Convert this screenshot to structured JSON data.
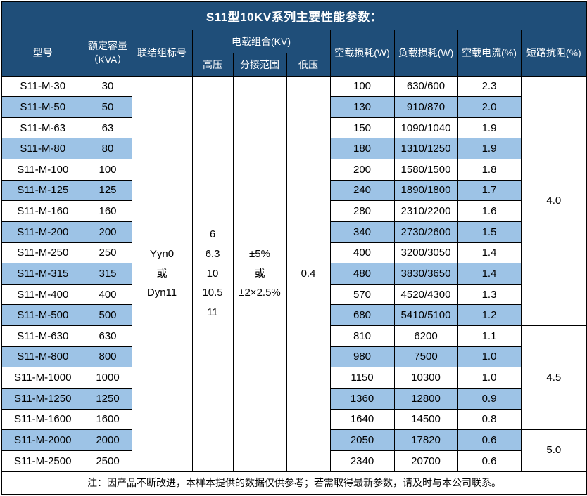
{
  "title": "S11型10KV系列主要性能参数：",
  "table": {
    "headers": {
      "model": "型号",
      "capacity": "额定容量\n（KVA）",
      "connection": "联结组标号",
      "load_combo": "电载组合(KV)",
      "high_voltage": "高压",
      "tap_range": "分接范围",
      "low_voltage": "低压",
      "no_load_loss": "空载损耗(W)",
      "load_loss": "负载损耗(W)",
      "no_load_current": "空载电流(%)",
      "impedance": "短路抗阻(%)"
    },
    "merged": {
      "connection": "Yyn0\n或\nDyn11",
      "high_voltage": "6\n6.3\n10\n10.5\n11",
      "tap_range": "±5%\n或\n±2×2.5%",
      "low_voltage": "0.4"
    },
    "rows": [
      {
        "model": "S11-M-30",
        "capacity": "30",
        "no_load_loss": "100",
        "load_loss": "630/600",
        "current": "2.3"
      },
      {
        "model": "S11-M-50",
        "capacity": "50",
        "no_load_loss": "130",
        "load_loss": "910/870",
        "current": "2.0"
      },
      {
        "model": "S11-M-63",
        "capacity": "63",
        "no_load_loss": "150",
        "load_loss": "1090/1040",
        "current": "1.9"
      },
      {
        "model": "S11-M-80",
        "capacity": "80",
        "no_load_loss": "180",
        "load_loss": "1310/1250",
        "current": "1.9"
      },
      {
        "model": "S11-M-100",
        "capacity": "100",
        "no_load_loss": "200",
        "load_loss": "1580/1500",
        "current": "1.8"
      },
      {
        "model": "S11-M-125",
        "capacity": "125",
        "no_load_loss": "240",
        "load_loss": "1890/1800",
        "current": "1.7"
      },
      {
        "model": "S11-M-160",
        "capacity": "160",
        "no_load_loss": "280",
        "load_loss": "2310/2200",
        "current": "1.6"
      },
      {
        "model": "S11-M-200",
        "capacity": "200",
        "no_load_loss": "340",
        "load_loss": "2730/2600",
        "current": "1.5"
      },
      {
        "model": "S11-M-250",
        "capacity": "250",
        "no_load_loss": "400",
        "load_loss": "3200/3050",
        "current": "1.4"
      },
      {
        "model": "S11-M-315",
        "capacity": "315",
        "no_load_loss": "480",
        "load_loss": "3830/3650",
        "current": "1.4"
      },
      {
        "model": "S11-M-400",
        "capacity": "400",
        "no_load_loss": "570",
        "load_loss": "4520/4300",
        "current": "1.3"
      },
      {
        "model": "S11-M-500",
        "capacity": "500",
        "no_load_loss": "680",
        "load_loss": "5410/5100",
        "current": "1.2"
      },
      {
        "model": "S11-M-630",
        "capacity": "630",
        "no_load_loss": "810",
        "load_loss": "6200",
        "current": "1.1"
      },
      {
        "model": "S11-M-800",
        "capacity": "800",
        "no_load_loss": "980",
        "load_loss": "7500",
        "current": "1.0"
      },
      {
        "model": "S11-M-1000",
        "capacity": "1000",
        "no_load_loss": "1150",
        "load_loss": "10300",
        "current": "1.0"
      },
      {
        "model": "S11-M-1250",
        "capacity": "1250",
        "no_load_loss": "1360",
        "load_loss": "12800",
        "current": "0.9"
      },
      {
        "model": "S11-M-1600",
        "capacity": "1600",
        "no_load_loss": "1640",
        "load_loss": "14500",
        "current": "0.8"
      },
      {
        "model": "S11-M-2000",
        "capacity": "2000",
        "no_load_loss": "2050",
        "load_loss": "17820",
        "current": "0.6"
      },
      {
        "model": "S11-M-2500",
        "capacity": "2500",
        "no_load_loss": "2340",
        "load_loss": "20700",
        "current": "0.6"
      }
    ],
    "impedance_groups": [
      {
        "value": "4.0",
        "rows": 12
      },
      {
        "value": "4.5",
        "rows": 5
      },
      {
        "value": "5.0",
        "rows": 2
      }
    ]
  },
  "footer": {
    "note": "注：因产品不断改进，本样本提供的数据仅供参考；若需取得最新参数，请及时与本公司联系。"
  },
  "colors": {
    "header_bg": "#1F4E79",
    "header_text": "#FFFFFF",
    "alt_row_bg": "#9DC3E6",
    "row_bg": "#FFFFFF",
    "border": "#000000",
    "body_text": "#000000"
  }
}
